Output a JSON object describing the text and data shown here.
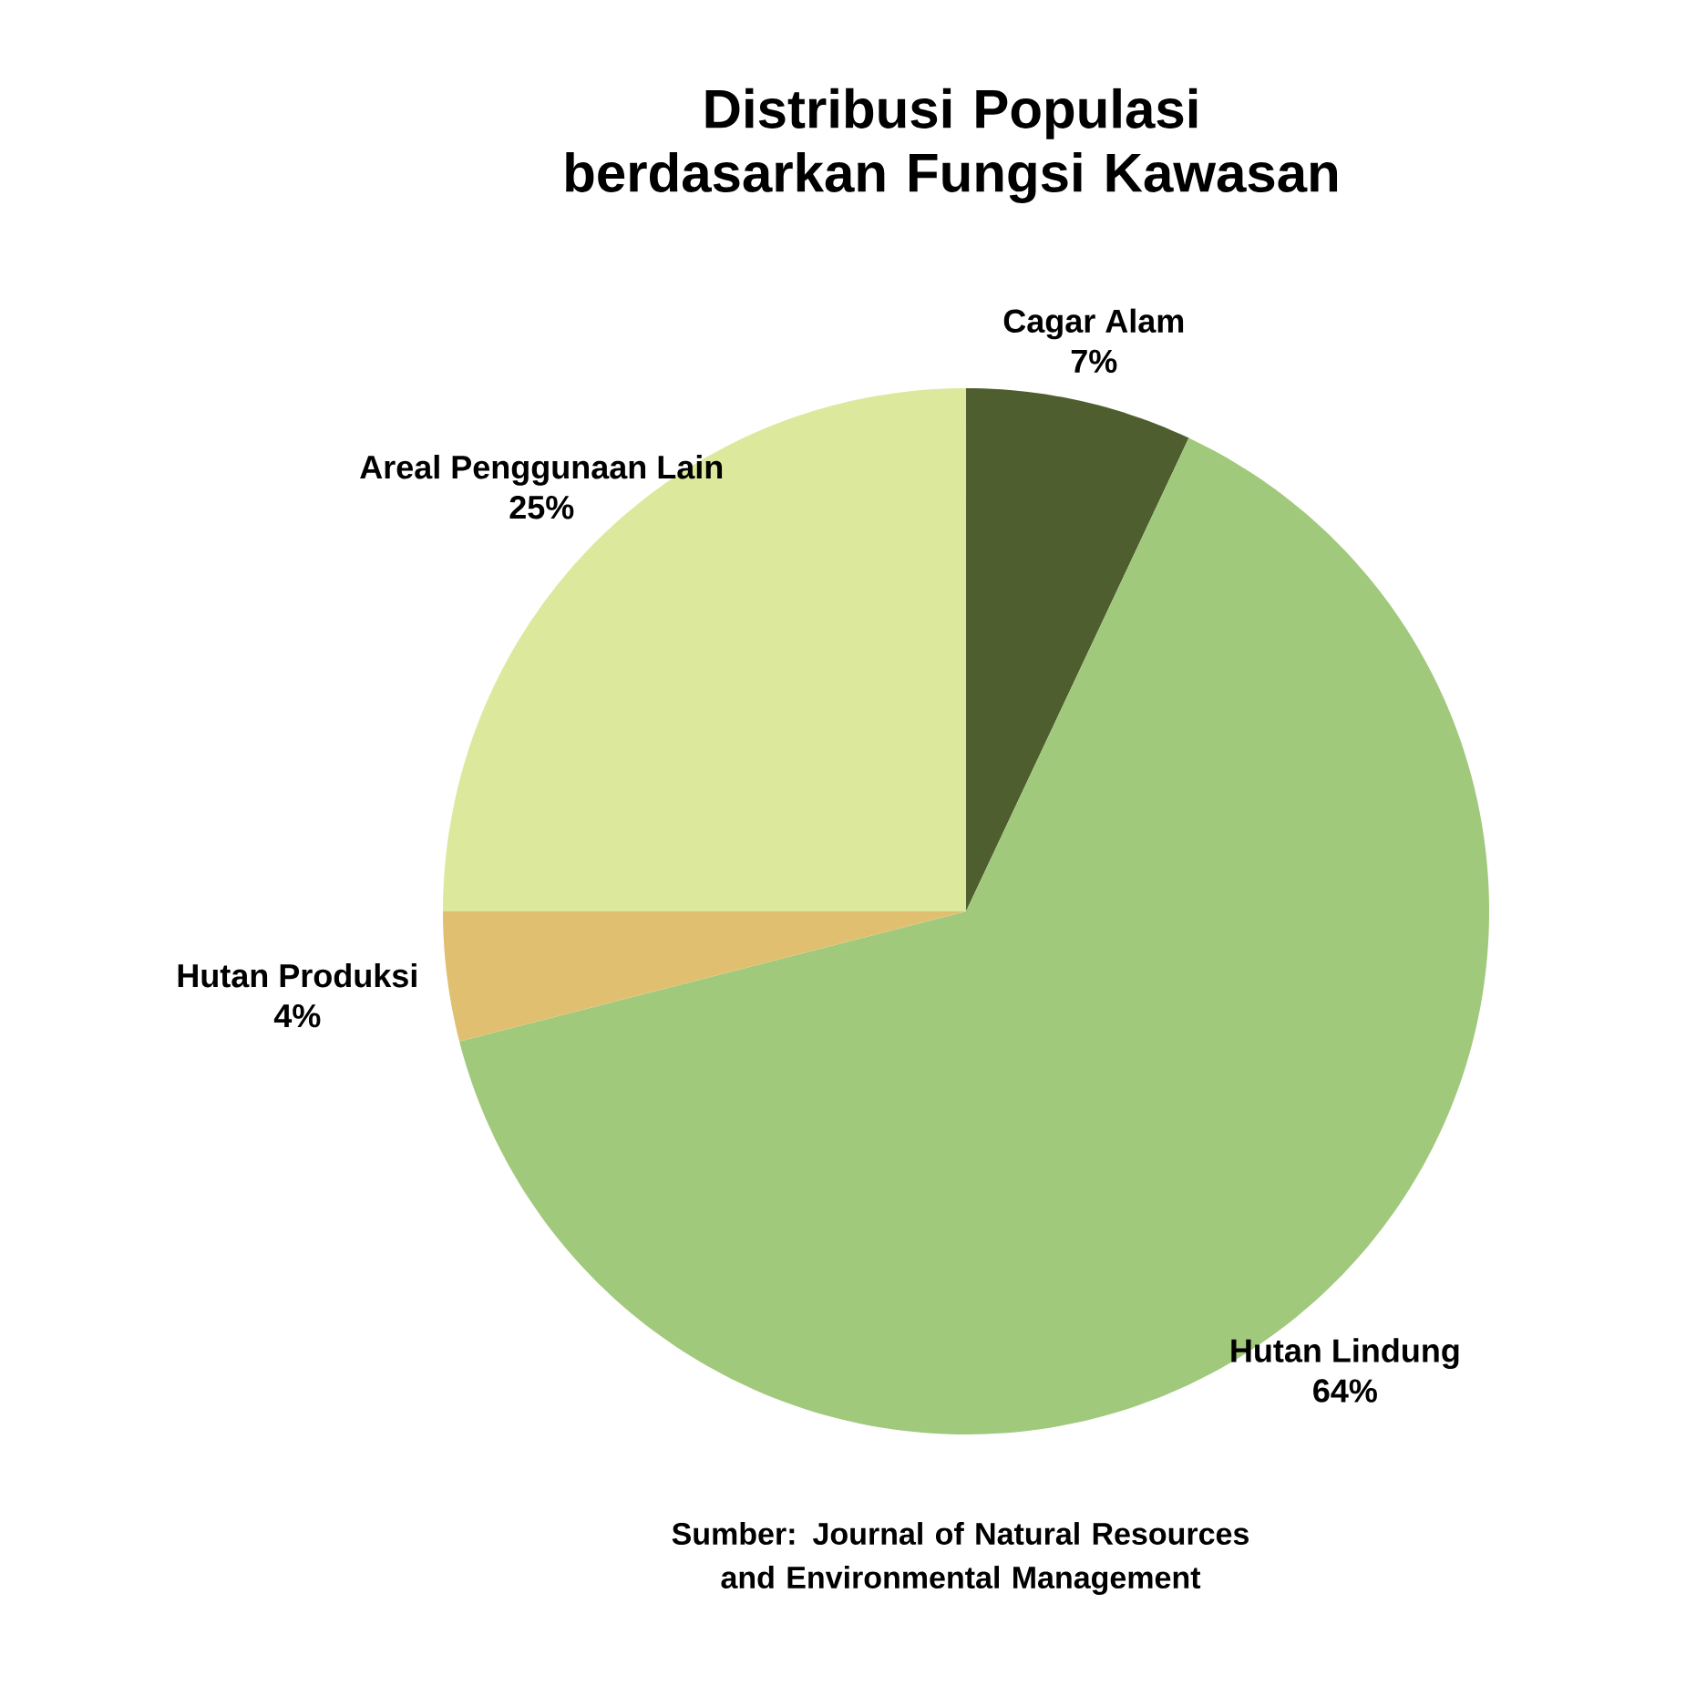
{
  "chart_data": {
    "type": "pie",
    "title": "Distribusi Populasi berdasarkan Fungsi Kawasan",
    "categories": [
      "Cagar Alam",
      "Hutan Lindung",
      "Hutan Produksi",
      "Areal Penggunaan Lain"
    ],
    "values": [
      7,
      64,
      4,
      25
    ],
    "value_labels": [
      "7%",
      "64%",
      "4%",
      "25%"
    ],
    "colors": [
      "#4f5e2f",
      "#a1c97c",
      "#e0c070",
      "#dce99c"
    ],
    "annotations": [
      "Sumber: Journal of Natural Resources and Environmental Management"
    ]
  }
}
